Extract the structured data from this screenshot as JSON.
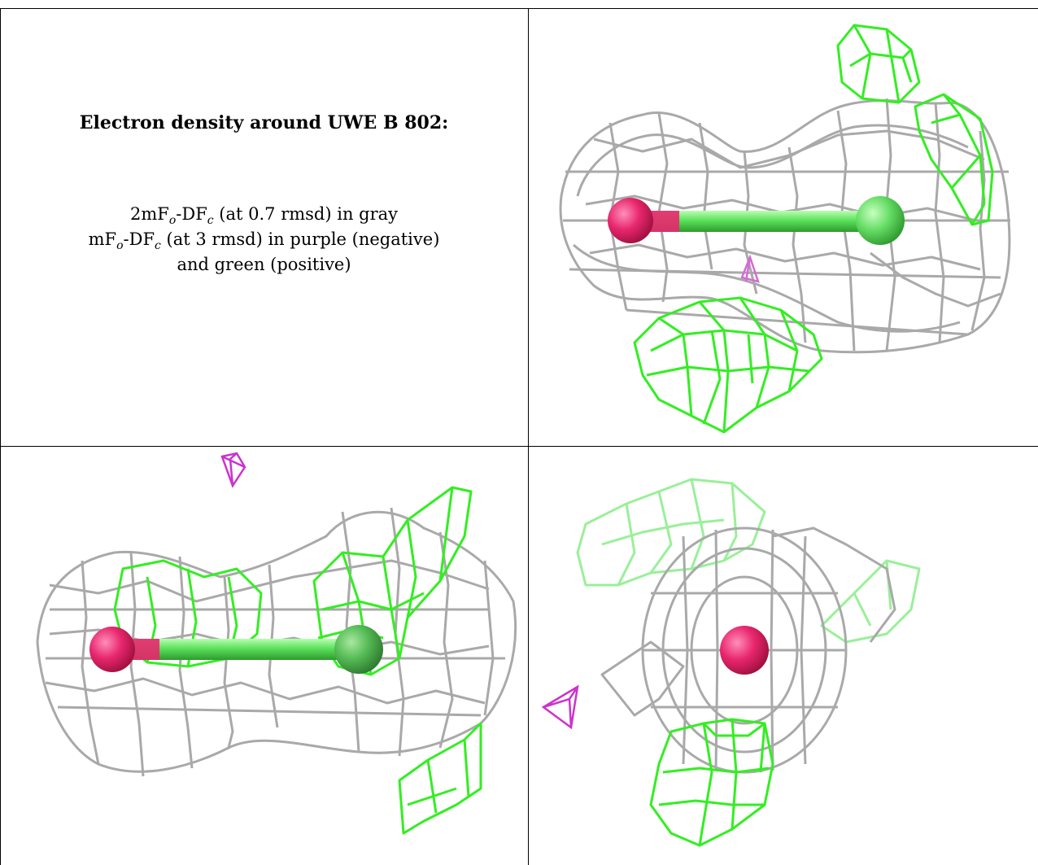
{
  "caption": {
    "title": "Electron density around UWE B 802:",
    "legend_line1": {
      "pre": "2mF",
      "sub1": "o",
      "mid": "-DF",
      "sub2": "c",
      "post": " (at 0.7 rmsd) in gray"
    },
    "legend_line2": {
      "pre": "mF",
      "sub1": "o",
      "mid": "-DF",
      "sub2": "c",
      "post": " (at 3 rmsd) in purple (negative)"
    },
    "legend_line3": "and green (positive)"
  },
  "colors": {
    "mesh_2fofc": "#a9a9a9",
    "mesh_fofc_positive": "#33ee22",
    "mesh_fofc_negative": "#cc33cc",
    "atom_oxygen": "#e8276e",
    "atom_chlorine": "#66dd66"
  }
}
